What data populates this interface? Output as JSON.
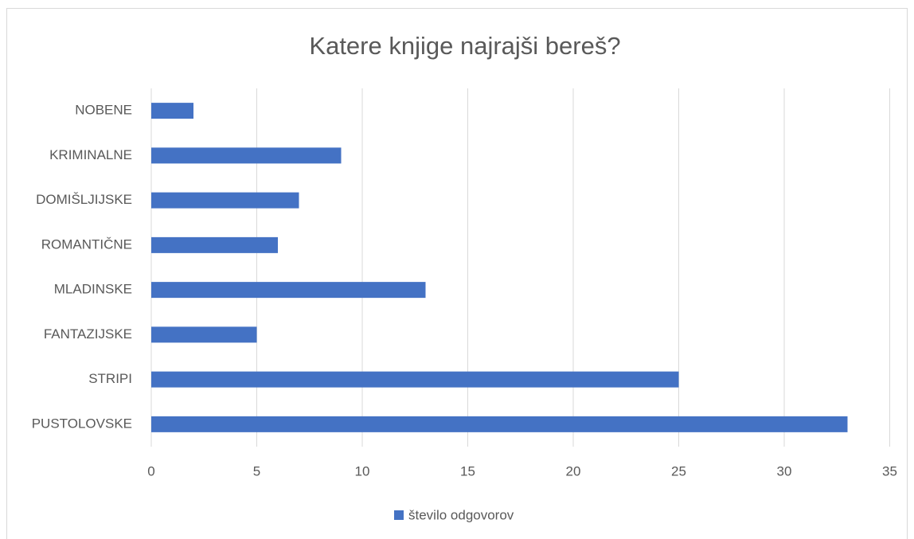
{
  "chart_data": {
    "type": "bar",
    "orientation": "horizontal",
    "title": "Katere knjige najrajši bereš?",
    "categories": [
      "NOBENE",
      "KRIMINALNE",
      "DOMIŠLJIJSKE",
      "ROMANTIČNE",
      "MLADINSKE",
      "FANTAZIJSKE",
      "STRIPI",
      "PUSTOLOVSKE"
    ],
    "series": [
      {
        "name": "število odgovorov",
        "color": "#4472c4",
        "values": [
          2,
          9,
          7,
          6,
          13,
          5,
          25,
          33
        ]
      }
    ],
    "xlim": [
      0,
      35
    ],
    "xticks": [
      0,
      5,
      10,
      15,
      20,
      25,
      30,
      35
    ],
    "grid": true,
    "legend": "bottom"
  }
}
